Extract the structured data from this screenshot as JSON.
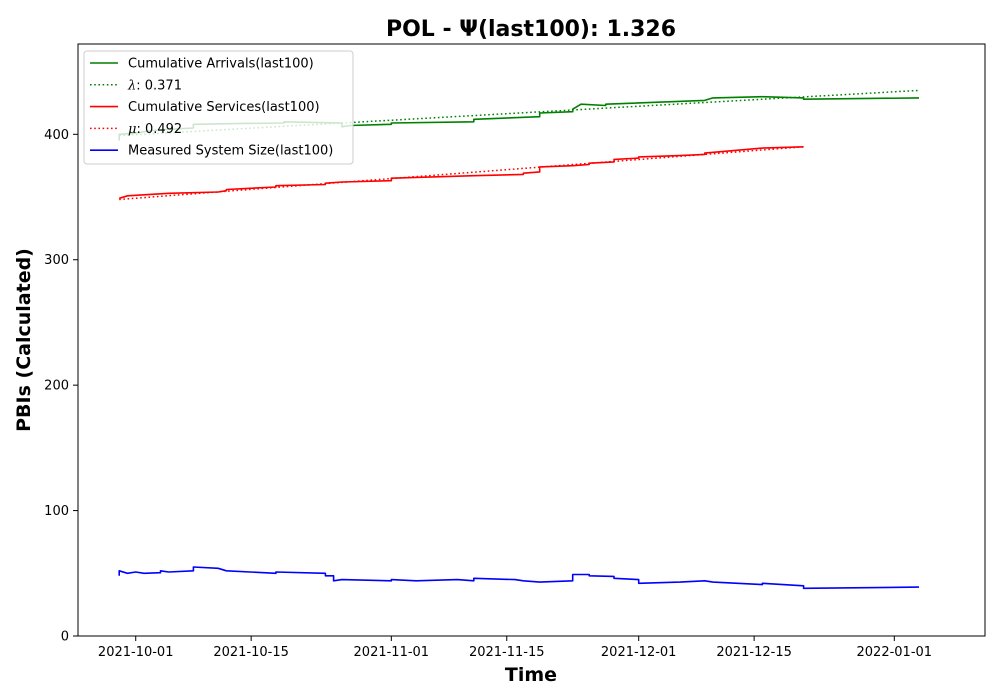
{
  "chart_data": {
    "type": "line",
    "title": "POL -  Ψ(last100): 1.326",
    "xlabel": "Time",
    "ylabel": "PBIs (Calculated)",
    "x_type": "date",
    "xlim": [
      "2021-09-24",
      "2022-01-12"
    ],
    "ylim": [
      0,
      472
    ],
    "x_ticks": [
      "2021-10-01",
      "2021-10-15",
      "2021-11-01",
      "2021-11-15",
      "2021-12-01",
      "2021-12-15",
      "2022-01-01"
    ],
    "y_ticks": [
      0,
      100,
      200,
      300,
      400
    ],
    "legend_position": "top-left",
    "series": [
      {
        "name": "Cumulative Arrivals(last100)",
        "color": "#008000",
        "style": "solid",
        "points": [
          [
            "2021-09-29",
            395
          ],
          [
            "2021-09-29",
            400
          ],
          [
            "2021-10-01",
            401
          ],
          [
            "2021-10-03",
            403
          ],
          [
            "2021-10-05",
            404
          ],
          [
            "2021-10-08",
            405
          ],
          [
            "2021-10-08",
            408
          ],
          [
            "2021-10-13",
            408.5
          ],
          [
            "2021-10-19",
            409
          ],
          [
            "2021-10-19",
            410
          ],
          [
            "2021-10-26",
            409
          ],
          [
            "2021-10-26",
            406
          ],
          [
            "2021-10-27",
            407
          ],
          [
            "2021-11-01",
            408
          ],
          [
            "2021-11-01",
            409
          ],
          [
            "2021-11-11",
            410
          ],
          [
            "2021-11-11",
            412
          ],
          [
            "2021-11-19",
            414
          ],
          [
            "2021-11-19",
            417
          ],
          [
            "2021-11-23",
            418
          ],
          [
            "2021-11-23",
            420
          ],
          [
            "2021-11-24",
            424
          ],
          [
            "2021-11-27",
            423
          ],
          [
            "2021-11-27",
            424
          ],
          [
            "2021-12-09",
            427
          ],
          [
            "2021-12-10",
            429
          ],
          [
            "2021-12-16",
            430
          ],
          [
            "2021-12-21",
            429
          ],
          [
            "2021-12-21",
            428
          ],
          [
            "2022-01-04",
            429
          ]
        ]
      },
      {
        "name": "λ: 0.371",
        "legend_math": "λ",
        "legend_rest": ": 0.371",
        "color": "#008000",
        "style": "dotted",
        "points": [
          [
            "2021-09-29",
            399
          ],
          [
            "2022-01-04",
            435
          ]
        ]
      },
      {
        "name": "Cumulative Services(last100)",
        "color": "#ff0000",
        "style": "solid",
        "points": [
          [
            "2021-09-29",
            349
          ],
          [
            "2021-09-30",
            351
          ],
          [
            "2021-10-05",
            353
          ],
          [
            "2021-10-11",
            354
          ],
          [
            "2021-10-12",
            355
          ],
          [
            "2021-10-12",
            356
          ],
          [
            "2021-10-18",
            358
          ],
          [
            "2021-10-18",
            359
          ],
          [
            "2021-10-24",
            360
          ],
          [
            "2021-10-24",
            361
          ],
          [
            "2021-10-26",
            362
          ],
          [
            "2021-11-01",
            363
          ],
          [
            "2021-11-01",
            365
          ],
          [
            "2021-11-11",
            367
          ],
          [
            "2021-11-17",
            368
          ],
          [
            "2021-11-17",
            369
          ],
          [
            "2021-11-19",
            370
          ],
          [
            "2021-11-19",
            374
          ],
          [
            "2021-11-23",
            375
          ],
          [
            "2021-11-25",
            376
          ],
          [
            "2021-11-25",
            377
          ],
          [
            "2021-11-28",
            378
          ],
          [
            "2021-11-28",
            380
          ],
          [
            "2021-12-01",
            381
          ],
          [
            "2021-12-01",
            382
          ],
          [
            "2021-12-06",
            383
          ],
          [
            "2021-12-09",
            384
          ],
          [
            "2021-12-09",
            385
          ],
          [
            "2021-12-16",
            389
          ],
          [
            "2021-12-21",
            390
          ]
        ]
      },
      {
        "name": "μ: 0.492",
        "legend_math": "μ",
        "legend_rest": ": 0.492",
        "color": "#ff0000",
        "style": "dotted",
        "points": [
          [
            "2021-09-29",
            348
          ],
          [
            "2021-12-21",
            390
          ]
        ]
      },
      {
        "name": "Measured System Size(last100)",
        "color": "#0000ff",
        "style": "solid",
        "points": [
          [
            "2021-09-29",
            48
          ],
          [
            "2021-09-29",
            52
          ],
          [
            "2021-09-30",
            50
          ],
          [
            "2021-10-01",
            51
          ],
          [
            "2021-10-02",
            50
          ],
          [
            "2021-10-04",
            50.5
          ],
          [
            "2021-10-04",
            52
          ],
          [
            "2021-10-05",
            51
          ],
          [
            "2021-10-08",
            52
          ],
          [
            "2021-10-08",
            55
          ],
          [
            "2021-10-11",
            54
          ],
          [
            "2021-10-12",
            52
          ],
          [
            "2021-10-18",
            50
          ],
          [
            "2021-10-18",
            51
          ],
          [
            "2021-10-24",
            50
          ],
          [
            "2021-10-24",
            48
          ],
          [
            "2021-10-25",
            48
          ],
          [
            "2021-10-25",
            44
          ],
          [
            "2021-10-26",
            45
          ],
          [
            "2021-11-01",
            44
          ],
          [
            "2021-11-01",
            45
          ],
          [
            "2021-11-04",
            44
          ],
          [
            "2021-11-09",
            45
          ],
          [
            "2021-11-11",
            44
          ],
          [
            "2021-11-11",
            46
          ],
          [
            "2021-11-16",
            45
          ],
          [
            "2021-11-17",
            44
          ],
          [
            "2021-11-19",
            43
          ],
          [
            "2021-11-23",
            44
          ],
          [
            "2021-11-23",
            49
          ],
          [
            "2021-11-25",
            49
          ],
          [
            "2021-11-25",
            48
          ],
          [
            "2021-11-28",
            47.5
          ],
          [
            "2021-11-28",
            46
          ],
          [
            "2021-12-01",
            45
          ],
          [
            "2021-12-01",
            42
          ],
          [
            "2021-12-06",
            43
          ],
          [
            "2021-12-09",
            44
          ],
          [
            "2021-12-10",
            43
          ],
          [
            "2021-12-16",
            41
          ],
          [
            "2021-12-16",
            42
          ],
          [
            "2021-12-21",
            40
          ],
          [
            "2021-12-21",
            38
          ],
          [
            "2022-01-04",
            39
          ]
        ]
      }
    ]
  }
}
